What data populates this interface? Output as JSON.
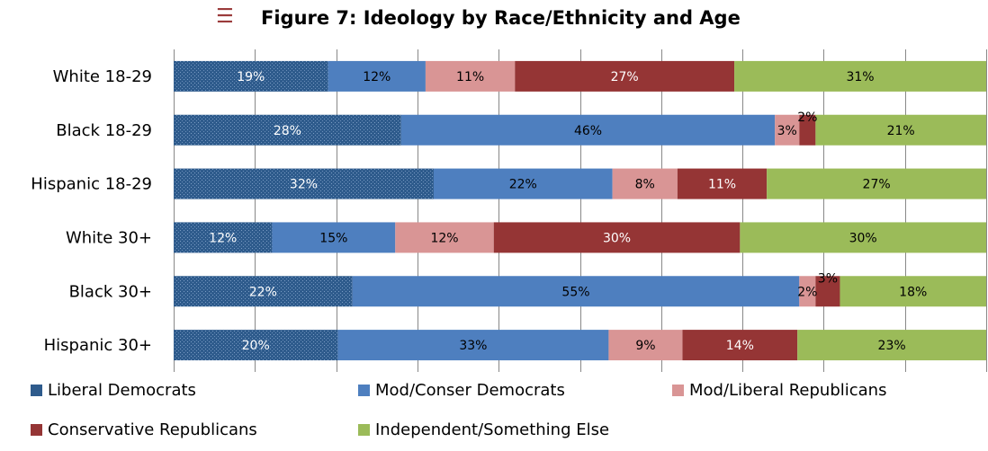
{
  "title": "Figure 7: Ideology by Race/Ethnicity and Age",
  "title_icon": "menu-icon",
  "colors": {
    "liberal_democrats": "#2e5b8c",
    "mod_conser_democrats": "#4e7fbf",
    "mod_liberal_republicans": "#d99595",
    "conservative_republicans": "#953535",
    "independent": "#9bbb59"
  },
  "chart_data": {
    "type": "bar",
    "orientation": "horizontal",
    "stacked": true,
    "title": "Figure 7: Ideology by Race/Ethnicity and Age",
    "xlabel": "",
    "ylabel": "",
    "xlim": [
      0,
      100
    ],
    "grid": true,
    "legend_position": "bottom",
    "categories": [
      "White 18-29",
      "Black 18-29",
      "Hispanic 18-29",
      "White 30+",
      "Black 30+",
      "Hispanic 30+"
    ],
    "series": [
      {
        "name": "Liberal Democrats",
        "color": "#2e5b8c",
        "values": [
          19,
          28,
          32,
          12,
          22,
          20
        ],
        "labels": [
          "19%",
          "28%",
          "32%",
          "12%",
          "22%",
          "20%"
        ]
      },
      {
        "name": "Mod/Conser Democrats",
        "color": "#4e7fbf",
        "values": [
          12,
          46,
          22,
          15,
          55,
          33
        ],
        "labels": [
          "12%",
          "46%",
          "22%",
          "15%",
          "55%",
          "33%"
        ]
      },
      {
        "name": "Mod/Liberal Republicans",
        "color": "#d99595",
        "values": [
          11,
          3,
          8,
          12,
          2,
          9
        ],
        "labels": [
          "11%",
          "3%",
          "8%",
          "12%",
          "2%",
          "9%"
        ]
      },
      {
        "name": "Conservative Republicans",
        "color": "#953535",
        "values": [
          27,
          2,
          11,
          30,
          3,
          14
        ],
        "labels": [
          "27%",
          "2%",
          "11%",
          "30%",
          "3%",
          "14%"
        ]
      },
      {
        "name": "Independent/Something Else",
        "color": "#9bbb59",
        "values": [
          31,
          21,
          27,
          30,
          18,
          23
        ],
        "labels": [
          "31%",
          "21%",
          "27%",
          "30%",
          "18%",
          "23%"
        ]
      }
    ]
  }
}
